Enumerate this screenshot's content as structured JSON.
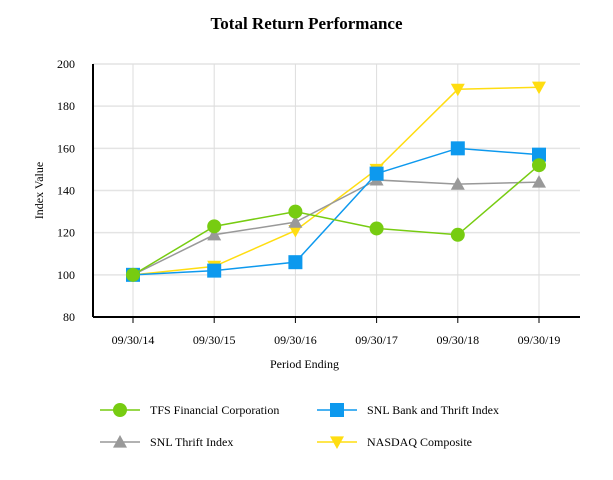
{
  "chart_data": {
    "type": "line",
    "title": "Total Return Performance",
    "xlabel": "Period Ending",
    "ylabel": "Index Value",
    "ylim": [
      80,
      200
    ],
    "yticks": [
      80,
      100,
      120,
      140,
      160,
      180,
      200
    ],
    "grid": true,
    "legend_position": "bottom",
    "categories": [
      "09/30/14",
      "09/30/15",
      "09/30/16",
      "09/30/17",
      "09/30/18",
      "09/30/19"
    ],
    "series": [
      {
        "name": "TFS Financial Corporation",
        "color": "#77cc11",
        "marker": "circle",
        "values": [
          100,
          123,
          130,
          122,
          119,
          152
        ]
      },
      {
        "name": "SNL Bank and Thrift Index",
        "color": "#0d99ee",
        "marker": "square",
        "values": [
          100,
          102,
          106,
          148,
          160,
          157
        ]
      },
      {
        "name": "SNL Thrift Index",
        "color": "#999999",
        "marker": "triangle-up",
        "values": [
          100,
          119,
          125,
          145,
          143,
          144
        ]
      },
      {
        "name": "NASDAQ Composite",
        "color": "#ffdd11",
        "marker": "triangle-down",
        "values": [
          100,
          104,
          121,
          150,
          188,
          189
        ]
      }
    ]
  }
}
